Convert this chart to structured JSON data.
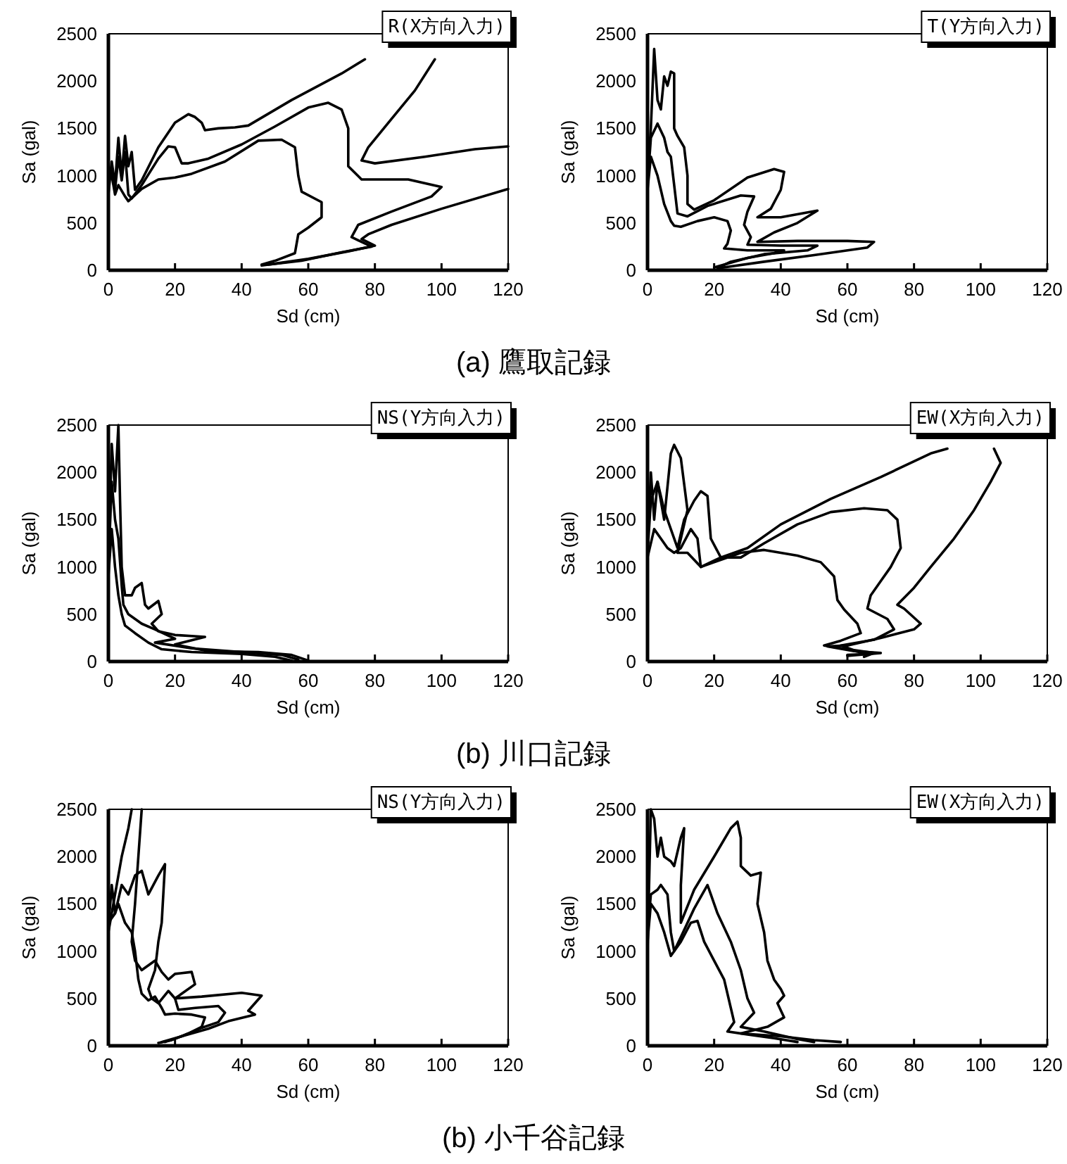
{
  "chart_data": [
    {
      "type": "line",
      "xlabel": "Sd (cm)",
      "ylabel": "Sa (gal)",
      "xlim": [
        0,
        120
      ],
      "xticks": [
        0,
        20,
        40,
        60,
        80,
        100,
        120
      ],
      "ylim": [
        0,
        2500
      ],
      "yticks": [
        0,
        500,
        1000,
        1500,
        2000,
        2500
      ],
      "annotations": [
        "R(X方向入力)",
        "(a) 鷹取記録"
      ],
      "series": [
        {
          "color": "#000000",
          "x": [
            0,
            1,
            2,
            3,
            4,
            5,
            6,
            7,
            8,
            10,
            15,
            20,
            24,
            26,
            28,
            29,
            33,
            38,
            42,
            55,
            70,
            77,
            null,
            98,
            92,
            85,
            78,
            76,
            80,
            95,
            110,
            120,
            null,
            120,
            100,
            85,
            78,
            76,
            80,
            72,
            60,
            50,
            46
          ],
          "values": [
            800,
            1150,
            900,
            1400,
            1000,
            1420,
            1100,
            1250,
            850,
            950,
            1300,
            1560,
            1650,
            1620,
            1560,
            1480,
            1500,
            1510,
            1530,
            1800,
            2080,
            2230,
            null,
            2230,
            1900,
            1600,
            1300,
            1160,
            1130,
            1200,
            1280,
            1310,
            null,
            860,
            650,
            480,
            380,
            330,
            260,
            200,
            120,
            70,
            50
          ]
        },
        {
          "color": "#000000",
          "x": [
            0,
            1,
            2,
            3,
            4,
            5,
            6,
            7,
            10,
            15,
            18,
            20,
            22,
            24,
            30,
            40,
            50,
            60,
            66,
            70,
            72,
            72,
            76,
            90,
            100,
            97,
            85,
            75,
            73,
            79,
            70,
            58,
            48
          ],
          "values": [
            900,
            1100,
            850,
            1200,
            950,
            1250,
            800,
            760,
            900,
            1180,
            1310,
            1300,
            1130,
            1130,
            1180,
            1330,
            1520,
            1720,
            1770,
            1700,
            1500,
            1100,
            960,
            960,
            880,
            780,
            620,
            480,
            350,
            250,
            190,
            100,
            60
          ]
        },
        {
          "color": "#000000",
          "x": [
            0,
            1,
            2,
            3,
            5,
            6,
            10,
            15,
            20,
            25,
            35,
            45,
            52,
            56,
            57,
            58,
            64,
            64,
            60,
            57,
            56,
            50,
            46
          ],
          "values": [
            950,
            1000,
            800,
            900,
            780,
            730,
            860,
            960,
            980,
            1020,
            1150,
            1370,
            1380,
            1300,
            1000,
            830,
            720,
            560,
            450,
            380,
            180,
            100,
            60
          ]
        }
      ]
    },
    {
      "type": "line",
      "xlabel": "Sd (cm)",
      "ylabel": "Sa (gal)",
      "xlim": [
        0,
        120
      ],
      "xticks": [
        0,
        20,
        40,
        60,
        80,
        100,
        120
      ],
      "ylim": [
        0,
        2500
      ],
      "yticks": [
        0,
        500,
        1000,
        1500,
        2000,
        2500
      ],
      "annotations": [
        "T(Y方向入力)"
      ],
      "series": [
        {
          "color": "#000000",
          "x": [
            0,
            1,
            2,
            3,
            4,
            5,
            6,
            7,
            8,
            8,
            9,
            11,
            12,
            12,
            14,
            20,
            30,
            38,
            41,
            40,
            37,
            33,
            40,
            51,
            45,
            38,
            33,
            45,
            60,
            68,
            66,
            50,
            35,
            21
          ],
          "values": [
            1000,
            1500,
            2340,
            1800,
            1700,
            2050,
            1950,
            2100,
            2080,
            1500,
            1420,
            1300,
            1000,
            700,
            640,
            740,
            980,
            1070,
            1040,
            850,
            650,
            560,
            560,
            630,
            500,
            400,
            300,
            310,
            310,
            300,
            240,
            160,
            90,
            20
          ]
        },
        {
          "color": "#000000",
          "x": [
            0,
            1,
            3,
            5,
            6,
            7,
            8,
            9,
            12,
            18,
            28,
            32,
            30,
            29,
            31,
            30,
            40,
            51,
            48,
            35,
            25,
            22
          ],
          "values": [
            900,
            1400,
            1550,
            1400,
            1250,
            1200,
            900,
            600,
            570,
            680,
            790,
            780,
            620,
            480,
            350,
            270,
            260,
            260,
            210,
            170,
            90,
            40
          ]
        },
        {
          "color": "#000000",
          "x": [
            0,
            1,
            2,
            3,
            4,
            5,
            7,
            8,
            10,
            15,
            20,
            24,
            25,
            24,
            23,
            30,
            41,
            38,
            30,
            23,
            20
          ],
          "values": [
            850,
            1200,
            1100,
            1000,
            850,
            700,
            520,
            470,
            460,
            520,
            560,
            520,
            420,
            280,
            230,
            210,
            210,
            180,
            130,
            60,
            30
          ]
        }
      ]
    },
    {
      "type": "line",
      "xlabel": "Sd (cm)",
      "ylabel": "Sa (gal)",
      "xlim": [
        0,
        120
      ],
      "xticks": [
        0,
        20,
        40,
        60,
        80,
        100,
        120
      ],
      "ylim": [
        0,
        2500
      ],
      "yticks": [
        0,
        500,
        1000,
        1500,
        2000,
        2500
      ],
      "annotations": [
        "NS(Y方向入力)",
        "(b) 川口記録"
      ],
      "series": [
        {
          "color": "#000000",
          "x": [
            0,
            1,
            2,
            3,
            3.5,
            4,
            5,
            7,
            8,
            10,
            11,
            12,
            15,
            16,
            13,
            15,
            20,
            25,
            29,
            20,
            30,
            45,
            55,
            60
          ],
          "values": [
            1100,
            2300,
            1800,
            2500,
            1700,
            1000,
            700,
            700,
            780,
            830,
            600,
            560,
            640,
            500,
            400,
            320,
            280,
            270,
            260,
            180,
            110,
            100,
            70,
            10
          ]
        },
        {
          "color": "#000000",
          "x": [
            0,
            1,
            2,
            3,
            4,
            4.5,
            6,
            8,
            10,
            14,
            20,
            14,
            25,
            40,
            52,
            57
          ],
          "values": [
            1000,
            1900,
            1500,
            1300,
            800,
            600,
            500,
            450,
            400,
            340,
            240,
            200,
            140,
            100,
            70,
            20
          ]
        },
        {
          "color": "#000000",
          "x": [
            0,
            1,
            2,
            3,
            4,
            5,
            8,
            12,
            16,
            25,
            40,
            50,
            55
          ],
          "values": [
            900,
            1400,
            1000,
            700,
            500,
            380,
            300,
            200,
            130,
            100,
            80,
            50,
            10
          ]
        }
      ]
    },
    {
      "type": "line",
      "xlabel": "Sd (cm)",
      "ylabel": "Sa (gal)",
      "xlim": [
        0,
        120
      ],
      "xticks": [
        0,
        20,
        40,
        60,
        80,
        100,
        120
      ],
      "ylim": [
        0,
        2500
      ],
      "yticks": [
        0,
        500,
        1000,
        1500,
        2000,
        2500
      ],
      "annotations": [
        "EW(X方向入力)"
      ],
      "series": [
        {
          "color": "#000000",
          "x": [
            0,
            1,
            2,
            3,
            5,
            7,
            8,
            10,
            12,
            10,
            9,
            12,
            16,
            22,
            30,
            40,
            55,
            70,
            85,
            90,
            null,
            104,
            106,
            103,
            98,
            92,
            85,
            80,
            75,
            77,
            82,
            80,
            70,
            60,
            54,
            62,
            70,
            63,
            60
          ],
          "values": [
            1200,
            2000,
            1500,
            1900,
            1500,
            2200,
            2290,
            2150,
            1600,
            1300,
            1150,
            1150,
            1000,
            1100,
            1200,
            1450,
            1720,
            1950,
            2200,
            2250,
            null,
            2250,
            2100,
            1900,
            1600,
            1300,
            1000,
            780,
            600,
            560,
            400,
            340,
            250,
            170,
            160,
            110,
            90,
            70,
            60
          ]
        },
        {
          "color": "#000000",
          "x": [
            0,
            1,
            3,
            5,
            7,
            9,
            11,
            14,
            16,
            18,
            19,
            22,
            28,
            35,
            45,
            55,
            65,
            72,
            75,
            76,
            73,
            70,
            67,
            66,
            72,
            74,
            68,
            58,
            62,
            68,
            65
          ],
          "values": [
            1150,
            1700,
            1900,
            1600,
            1400,
            1200,
            1500,
            1700,
            1800,
            1750,
            1300,
            1100,
            1100,
            1250,
            1450,
            1580,
            1620,
            1600,
            1500,
            1200,
            1000,
            850,
            700,
            560,
            450,
            340,
            230,
            170,
            120,
            90,
            50
          ]
        },
        {
          "color": "#000000",
          "x": [
            0,
            2,
            4,
            6,
            8,
            10,
            13,
            15,
            16,
            20,
            28,
            35,
            45,
            52,
            56,
            57,
            59,
            63,
            64,
            58,
            53,
            60,
            66,
            60
          ],
          "values": [
            1100,
            1400,
            1300,
            1200,
            1150,
            1200,
            1400,
            1300,
            1000,
            1050,
            1150,
            1180,
            1120,
            1050,
            900,
            650,
            550,
            400,
            300,
            220,
            170,
            130,
            80,
            70
          ]
        }
      ]
    },
    {
      "type": "line",
      "xlabel": "Sd (cm)",
      "ylabel": "Sa (gal)",
      "xlim": [
        0,
        120
      ],
      "xticks": [
        0,
        20,
        40,
        60,
        80,
        100,
        120
      ],
      "ylim": [
        0,
        2500
      ],
      "yticks": [
        0,
        500,
        1000,
        1500,
        2000,
        2500
      ],
      "annotations": [
        "NS(Y方向入力)",
        "(b) 小千谷記録"
      ],
      "series": [
        {
          "color": "#000000",
          "x": [
            0,
            2,
            4,
            6,
            7,
            null,
            10,
            9,
            8,
            7,
            8,
            10,
            14,
            16,
            18,
            20,
            25,
            26,
            22,
            20,
            28,
            40,
            46,
            44,
            42,
            44,
            36,
            30,
            22,
            16
          ],
          "values": [
            1200,
            1600,
            2000,
            2300,
            2500,
            null,
            2500,
            2000,
            1500,
            1100,
            900,
            800,
            900,
            780,
            700,
            760,
            780,
            650,
            550,
            500,
            520,
            560,
            530,
            450,
            370,
            330,
            260,
            180,
            100,
            40
          ]
        },
        {
          "color": "#000000",
          "x": [
            0,
            2,
            4,
            6,
            8,
            10,
            12,
            15,
            17,
            16,
            15,
            14,
            12,
            13,
            15,
            18,
            20,
            21,
            26,
            33,
            35,
            33,
            28,
            22,
            17
          ],
          "values": [
            1300,
            1400,
            1700,
            1600,
            1800,
            1850,
            1600,
            1800,
            1920,
            1300,
            1100,
            800,
            600,
            500,
            450,
            580,
            500,
            380,
            400,
            420,
            350,
            250,
            190,
            100,
            40
          ]
        },
        {
          "color": "#000000",
          "x": [
            0,
            1,
            2,
            3,
            5,
            7,
            8,
            9,
            10,
            12,
            14,
            16,
            17,
            20,
            25,
            29,
            28,
            24,
            19,
            15
          ],
          "values": [
            1250,
            1700,
            1400,
            1500,
            1300,
            1200,
            1000,
            700,
            550,
            480,
            520,
            400,
            330,
            340,
            330,
            300,
            200,
            130,
            60,
            30
          ]
        }
      ]
    },
    {
      "type": "line",
      "xlabel": "Sd (cm)",
      "ylabel": "Sa (gal)",
      "xlim": [
        0,
        120
      ],
      "xticks": [
        0,
        20,
        40,
        60,
        80,
        100,
        120
      ],
      "ylim": [
        0,
        2500
      ],
      "yticks": [
        0,
        500,
        1000,
        1500,
        2000,
        2500
      ],
      "annotations": [
        "EW(X方向入力)"
      ],
      "series": [
        {
          "color": "#000000",
          "x": [
            0,
            1,
            2,
            3,
            4,
            5,
            7,
            8,
            10,
            11,
            10,
            10,
            14,
            20,
            25,
            27,
            28,
            28,
            31,
            34,
            33,
            35,
            36,
            38,
            40,
            41,
            39,
            41,
            36,
            28,
            40,
            50,
            58
          ],
          "values": [
            1000,
            2500,
            2400,
            2000,
            2200,
            2000,
            1950,
            1900,
            2200,
            2300,
            1700,
            1300,
            1650,
            2000,
            2300,
            2370,
            2200,
            1900,
            1800,
            1830,
            1500,
            1200,
            900,
            700,
            600,
            530,
            450,
            300,
            200,
            130,
            100,
            60,
            40
          ]
        },
        {
          "color": "#000000",
          "x": [
            0,
            1,
            3,
            4,
            6,
            7,
            8,
            10,
            14,
            18,
            19,
            21,
            25,
            28,
            30,
            32,
            28,
            35,
            45,
            50
          ],
          "values": [
            1200,
            1600,
            1650,
            1700,
            1600,
            1200,
            1000,
            1150,
            1450,
            1700,
            1600,
            1400,
            1100,
            800,
            500,
            350,
            200,
            150,
            70,
            40
          ]
        },
        {
          "color": "#000000",
          "x": [
            0,
            1,
            3,
            5,
            7,
            10,
            13,
            15,
            17,
            20,
            23,
            25,
            26,
            24,
            30,
            38,
            45
          ],
          "values": [
            1100,
            1500,
            1400,
            1200,
            950,
            1100,
            1300,
            1320,
            1100,
            900,
            700,
            400,
            250,
            150,
            120,
            80,
            40
          ]
        }
      ]
    }
  ]
}
